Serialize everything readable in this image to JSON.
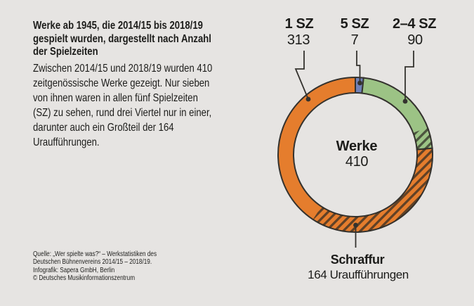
{
  "canvas": {
    "background_color": "#e6e4e2",
    "text_color": "#1c1c1a"
  },
  "intro": {
    "title_lines": [
      "Werke ab 1945, die 2014/15 bis 2018/19",
      "gespielt wurden, dargestellt nach Anzahl",
      "der Spielzeiten"
    ],
    "body_lines": [
      "Zwischen 2014/15 und 2018/19 wurden 410",
      "zeitgenössische Werke gezeigt. Nur sieben",
      "von ihnen waren in allen fünf Spielzeiten",
      "(SZ) zu sehen, rund drei Viertel nur in einer,",
      "darunter auch ein Großteil der 164",
      "Uraufführungen."
    ],
    "source_lines": [
      "Quelle: „Wer spielte was?“ – Werkstatistiken des",
      "Deutschen Bühnenvereins 2014/15 – 2018/19.",
      "Infografik: Sapera GmbH, Berlin",
      "© Deutsches Musikinformationszentrum"
    ]
  },
  "chart_data": {
    "type": "pie",
    "subtype": "donut",
    "title": "Werke ab 1945, die 2014/15 bis 2018/19 gespielt wurden, dargestellt nach Anzahl der Spielzeiten",
    "center_label": "Werke",
    "total": 410,
    "segments": [
      {
        "label": "1 SZ",
        "value": 313,
        "color": "#e57d2d"
      },
      {
        "label": "5 SZ",
        "value": 7,
        "color": "#7081b8"
      },
      {
        "label": "2–4 SZ",
        "value": 90,
        "color": "#9cc385"
      }
    ],
    "ring_order_clockwise_from_top": [
      "5 SZ",
      "2–4 SZ",
      "1 SZ"
    ],
    "hatch_overlay": {
      "label": "Schraffur",
      "description": "164 Uraufführungen",
      "value": 164,
      "style": "diagonal-stripes"
    },
    "outline_color": "#34322e",
    "legend_position": "callouts"
  }
}
